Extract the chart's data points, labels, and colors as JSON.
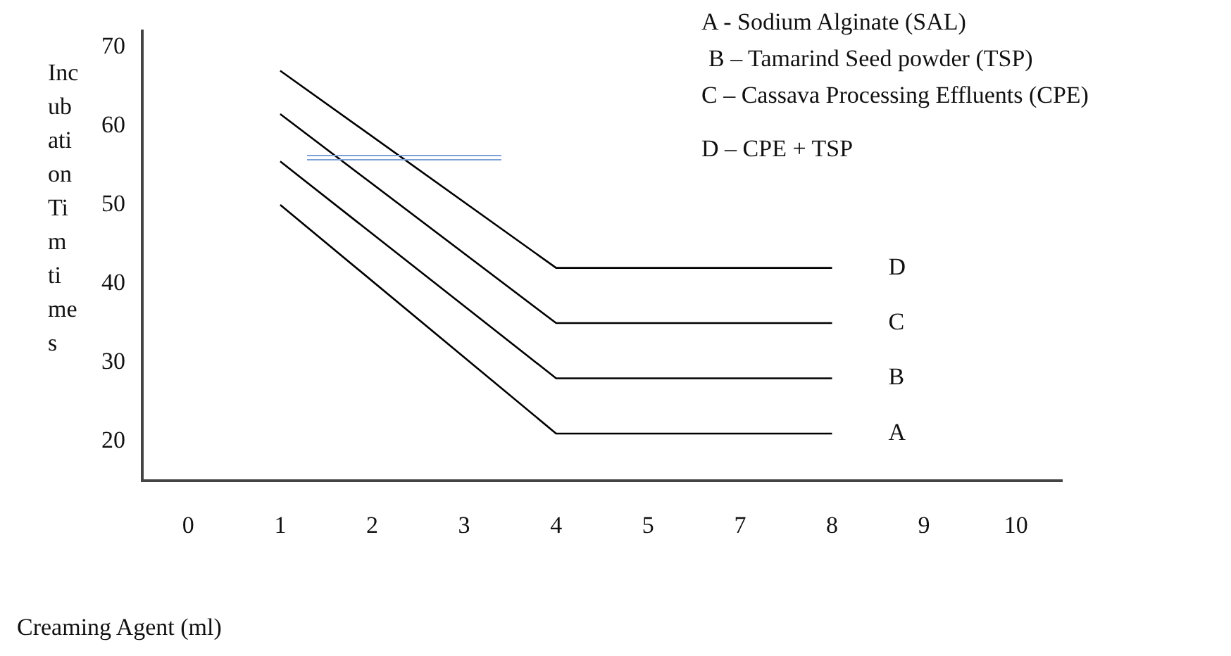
{
  "chart_data": {
    "type": "line",
    "xlabel": "Creaming Agent (ml)",
    "ylabel": "Incubation Tim times",
    "categories": [
      "0",
      "1",
      "2",
      "3",
      "4",
      "5",
      "7",
      "8",
      "9",
      "10"
    ],
    "series": [
      {
        "name": "A",
        "color": "#000000",
        "values": [
          null,
          50,
          null,
          null,
          21,
          null,
          null,
          21,
          null,
          null
        ]
      },
      {
        "name": "B",
        "color": "#000000",
        "values": [
          null,
          55.5,
          null,
          null,
          28,
          null,
          null,
          28,
          null,
          null
        ]
      },
      {
        "name": "C",
        "color": "#000000",
        "values": [
          null,
          61.5,
          null,
          null,
          35,
          null,
          null,
          35,
          null,
          null
        ]
      },
      {
        "name": "D",
        "color": "#000000",
        "values": [
          null,
          67,
          null,
          null,
          42,
          null,
          null,
          42,
          null,
          null
        ]
      }
    ],
    "ylim": [
      15,
      72
    ],
    "yticks": [
      20,
      30,
      40,
      50,
      60,
      70
    ],
    "grid": false,
    "legend": false,
    "annotations": [
      "A - Sodium Alginate (SAL)",
      "B – Tamarind Seed powder (TSP)",
      "C – Cassava Processing Effluents (CPE)",
      "D – CPE + TSP"
    ]
  }
}
